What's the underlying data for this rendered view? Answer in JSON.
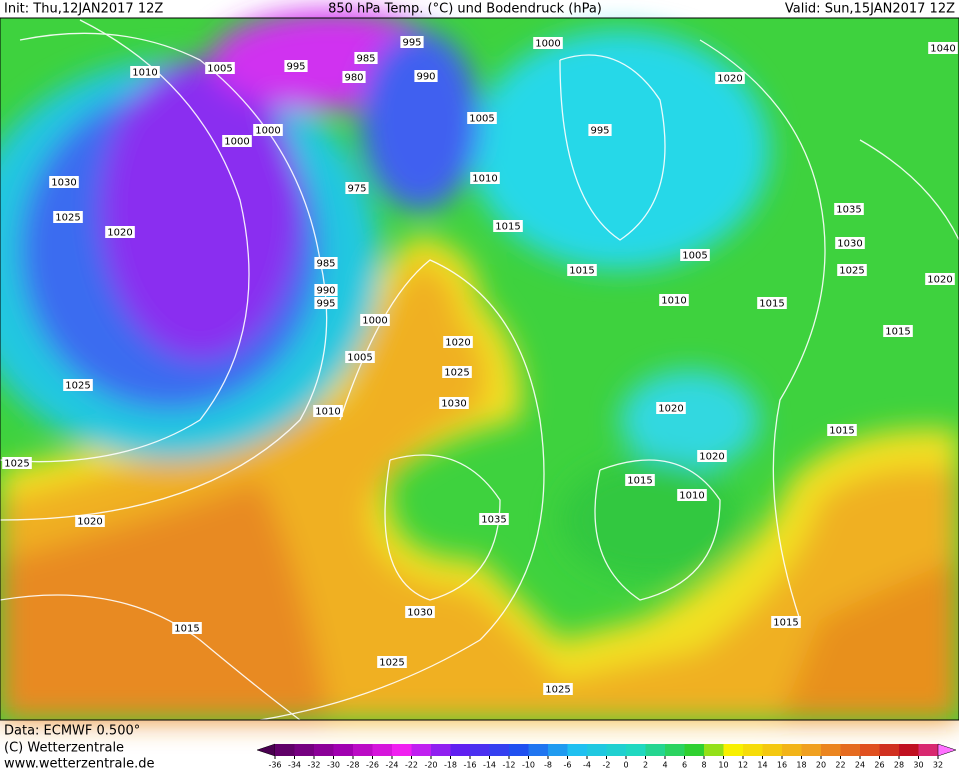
{
  "header": {
    "init": "Init: Thu,12JAN2017 12Z",
    "title": "850 hPa Temp. (°C) und Bodendruck (hPa)",
    "valid": "Valid: Sun,15JAN2017 12Z"
  },
  "footer": {
    "data": "Data: ECMWF   0.500°",
    "copyright": "(C) Wetterzentrale",
    "url": "www.wetterzentrale.de"
  },
  "colorbar": {
    "ticks": [
      -36,
      -34,
      -32,
      -30,
      -28,
      -26,
      -24,
      -22,
      -20,
      -18,
      -16,
      -14,
      -12,
      -10,
      -8,
      -6,
      -4,
      -2,
      0,
      2,
      4,
      6,
      8,
      10,
      12,
      14,
      16,
      18,
      20,
      22,
      24,
      26,
      28,
      30,
      32
    ]
  },
  "isobar_labels": [
    1010,
    1005,
    995,
    985,
    980,
    990,
    995,
    1000,
    1000,
    1020,
    1040,
    1030,
    1025,
    1020,
    1000,
    975,
    995,
    1005,
    1010,
    1015,
    1015,
    1005,
    1010,
    1015,
    1035,
    1030,
    1025,
    1020,
    1015,
    1025,
    1005,
    1000,
    1020,
    1025,
    1030,
    1010,
    1020,
    1020,
    1015,
    1010,
    1035,
    1030,
    1025,
    1025,
    1015,
    1020,
    1015,
    1025,
    1015,
    985,
    990,
    995
  ]
}
